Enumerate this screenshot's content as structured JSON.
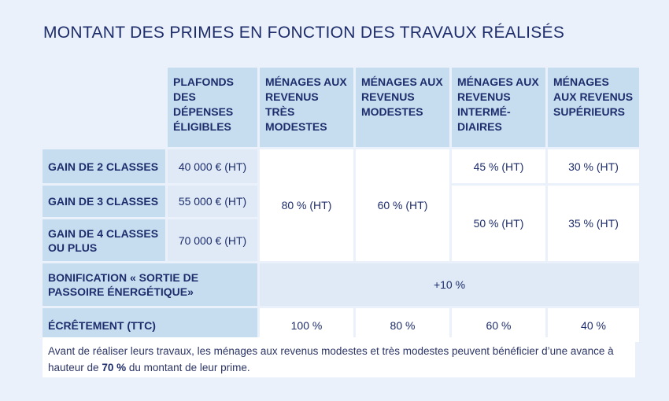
{
  "title": "MONTANT DES PRIMES EN FONCTION DES TRAVAUX RÉALISÉS",
  "header": {
    "plafonds": "PLAFONDS DES DÉPENSES ÉLIGIBLES",
    "tres_modestes": "MÉNAGES AUX REVENUS TRÈS MODESTES",
    "modestes": "MÉNAGES AUX REVENUS MODESTES",
    "intermediaires": "MÉNAGES AUX REVENUS INTERMÉ-DIAIRES",
    "superieurs": "MÉNAGES AUX REVENUS SUPÉRIEURS"
  },
  "rows": {
    "gain2": {
      "label": "GAIN DE 2 CLASSES",
      "plafond": "40 000 € (HT)",
      "intermediaires": "45 % (HT)",
      "superieurs": "30 % (HT)"
    },
    "gain3": {
      "label": "GAIN DE 3 CLASSES",
      "plafond": "55 000 € (HT)"
    },
    "gain4": {
      "label": "GAIN DE 4 CLASSES OU PLUS",
      "plafond": "70 000 € (HT)"
    },
    "gain34": {
      "intermediaires": "50 % (HT)",
      "superieurs": "35 % (HT)"
    },
    "merged": {
      "tres_modestes": "80 % (HT)",
      "modestes": "60 % (HT)"
    },
    "bonification": {
      "label": "BONIFICATION « SORTIE DE PASSOIRE ÉNERGÉTIQUE»",
      "value": "+10 %"
    },
    "ecretement": {
      "label": "ÉCRÊTEMENT (TTC)",
      "tres_modestes": "100 %",
      "modestes": "80 %",
      "intermediaires": "60 %",
      "superieurs": "40 %"
    }
  },
  "note": {
    "text_before": "Avant de réaliser leurs travaux, les ménages aux revenus modestes et très modestes peuvent bénéficier d’une avance à hauteur de ",
    "bold": "70 %",
    "text_after": " du montant de leur prime."
  }
}
